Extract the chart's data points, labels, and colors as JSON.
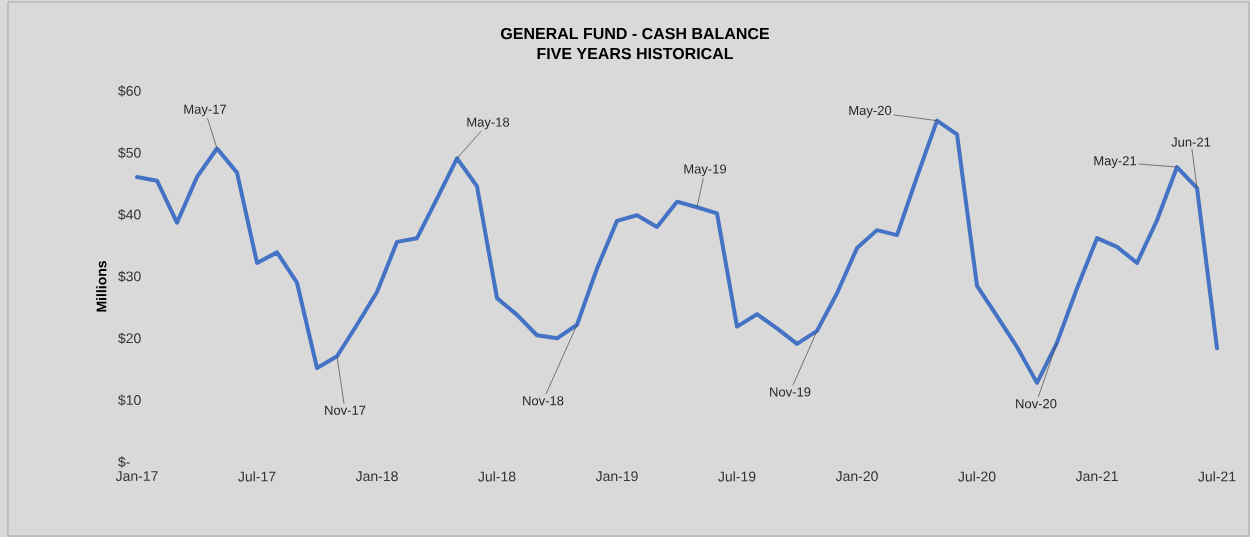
{
  "chart_data": {
    "type": "line",
    "title": "GENERAL FUND - CASH BALANCE",
    "subtitle": "FIVE YEARS HISTORICAL",
    "ylabel": "Millions",
    "x": [
      "2017-01",
      "2017-02",
      "2017-03",
      "2017-04",
      "2017-05",
      "2017-06",
      "2017-07",
      "2017-08",
      "2017-09",
      "2017-10",
      "2017-11",
      "2017-12",
      "2018-01",
      "2018-02",
      "2018-03",
      "2018-04",
      "2018-05",
      "2018-06",
      "2018-07",
      "2018-08",
      "2018-09",
      "2018-10",
      "2018-11",
      "2018-12",
      "2019-01",
      "2019-02",
      "2019-03",
      "2019-04",
      "2019-05",
      "2019-06",
      "2019-07",
      "2019-08",
      "2019-09",
      "2019-10",
      "2019-11",
      "2019-12",
      "2020-01",
      "2020-02",
      "2020-03",
      "2020-04",
      "2020-05",
      "2020-06",
      "2020-07",
      "2020-08",
      "2020-09",
      "2020-10",
      "2020-11",
      "2020-12",
      "2021-01",
      "2021-02",
      "2021-03",
      "2021-04",
      "2021-05",
      "2021-06",
      "2021-07"
    ],
    "series": [
      {
        "color": "#4472c4",
        "values": [
          46.1,
          45.5,
          38.7,
          46.1,
          50.7,
          46.8,
          32.2,
          33.9,
          29.0,
          15.2,
          17.1,
          22.2,
          27.5,
          35.6,
          36.2,
          42.6,
          49.1,
          44.6,
          26.5,
          23.8,
          20.5,
          20.0,
          22.2,
          31.3,
          39.0,
          39.9,
          38.0,
          42.1,
          41.2,
          40.2,
          21.9,
          23.9,
          21.6,
          19.1,
          21.2,
          27.3,
          34.6,
          37.5,
          36.7,
          46.1,
          55.2,
          53.0,
          28.5,
          23.6,
          18.6,
          12.8,
          19.3,
          28.1,
          36.2,
          34.8,
          32.2,
          39.1,
          47.7,
          44.3,
          18.4
        ]
      }
    ],
    "xlim": [
      "2017-01",
      "2021-07"
    ],
    "xticks": [
      {
        "value": "2017-01",
        "label": "Jan-17"
      },
      {
        "value": "2017-07",
        "label": "Jul-17"
      },
      {
        "value": "2018-01",
        "label": "Jan-18"
      },
      {
        "value": "2018-07",
        "label": "Jul-18"
      },
      {
        "value": "2019-01",
        "label": "Jan-19"
      },
      {
        "value": "2019-07",
        "label": "Jul-19"
      },
      {
        "value": "2020-01",
        "label": "Jan-20"
      },
      {
        "value": "2020-07",
        "label": "Jul-20"
      },
      {
        "value": "2021-01",
        "label": "Jan-21"
      },
      {
        "value": "2021-07",
        "label": "Jul-21"
      }
    ],
    "ylim": [
      0,
      60
    ],
    "yticks": [
      {
        "value": 0,
        "label": "$-"
      },
      {
        "value": 10,
        "label": "$10"
      },
      {
        "value": 20,
        "label": "$20"
      },
      {
        "value": 30,
        "label": "$30"
      },
      {
        "value": 40,
        "label": "$40"
      },
      {
        "value": 50,
        "label": "$50"
      },
      {
        "value": 60,
        "label": "$60"
      }
    ],
    "annotations": [
      {
        "text": "May-17",
        "x": "2017-05",
        "y": 50.7
      },
      {
        "text": "Nov-17",
        "x": "2017-11",
        "y": 17.1
      },
      {
        "text": "May-18",
        "x": "2018-05",
        "y": 49.1
      },
      {
        "text": "Nov-18",
        "x": "2018-11",
        "y": 22.2
      },
      {
        "text": "May-19",
        "x": "2019-05",
        "y": 41.2
      },
      {
        "text": "Nov-19",
        "x": "2019-11",
        "y": 21.2
      },
      {
        "text": "May-20",
        "x": "2020-05",
        "y": 55.2
      },
      {
        "text": "Nov-20",
        "x": "2020-11",
        "y": 19.3
      },
      {
        "text": "May-21",
        "x": "2021-05",
        "y": 47.7
      },
      {
        "text": "Jun-21",
        "x": "2021-06",
        "y": 44.3
      }
    ]
  }
}
